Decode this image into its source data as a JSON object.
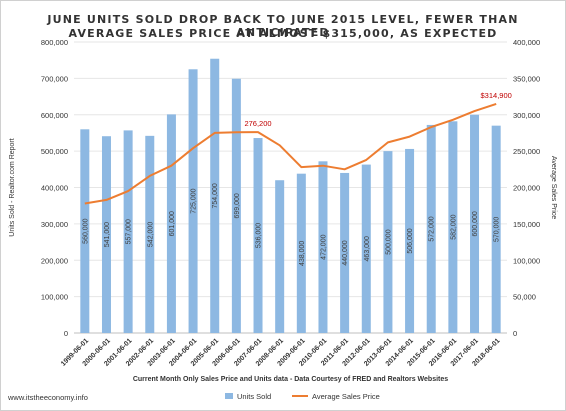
{
  "chart_data": {
    "type": "bar",
    "title": "JUNE UNITS SOLD DROP BACK TO JUNE 2015 LEVEL, FEWER THAN ANTICIPATED",
    "subtitle": "AVERAGE SALES PRICE AT ALMOST $315,000, AS EXPECTED",
    "xlabel": "Current Month Only Sales Price and Units data - Data Courtesy of FRED and Realtors Websites",
    "ylabel": "Units Sold - Realtor.com Report",
    "y2label": "Average Sales Price",
    "ylim": [
      0,
      800000
    ],
    "y2lim": [
      0,
      400000
    ],
    "yticks": [
      "0",
      "100,000",
      "200,000",
      "300,000",
      "400,000",
      "500,000",
      "600,000",
      "700,000",
      "800,000"
    ],
    "y2ticks": [
      "0",
      "50,000",
      "100,000",
      "150,000",
      "200,000",
      "250,000",
      "300,000",
      "350,000",
      "400,000"
    ],
    "categories": [
      "1999-06-01",
      "2000-06-01",
      "2001-06-01",
      "2002-06-01",
      "2003-06-01",
      "2004-06-01",
      "2005-06-01",
      "2006-06-01",
      "2007-06-01",
      "2008-06-01",
      "2009-06-01",
      "2010-06-01",
      "2011-06-01",
      "2012-06-01",
      "2013-06-01",
      "2014-06-01",
      "2015-06-01",
      "2016-06-01",
      "2017-06-01",
      "2018-06-01"
    ],
    "series": [
      {
        "name": "Units Sold",
        "type": "bar",
        "axis": "left",
        "color": "#8db8e2",
        "values": [
          560000,
          541000,
          557000,
          542000,
          601000,
          725000,
          754000,
          699000,
          536000,
          420000,
          438000,
          472000,
          440000,
          463000,
          500000,
          506000,
          572000,
          582000,
          600000,
          570000
        ],
        "labels": [
          "560,000",
          "541,000",
          "557,000",
          "542,000",
          "601,000",
          "725,000",
          "754,000",
          "699,000",
          "536,000",
          "",
          "438,000",
          "472,000",
          "440,000",
          "463,000",
          "500,000",
          "506,000",
          "572,000",
          "582,000",
          "600,000",
          "570,000"
        ]
      },
      {
        "name": "Average Sales Price",
        "type": "line",
        "axis": "right",
        "color": "#ed7d31",
        "values": [
          178000,
          183000,
          195000,
          216000,
          230000,
          254000,
          275000,
          276000,
          276200,
          258000,
          228000,
          230000,
          225000,
          238000,
          262000,
          270000,
          283000,
          293000,
          305000,
          314900
        ]
      }
    ],
    "annotations": [
      {
        "index": 8,
        "series": 1,
        "text": "276,200"
      },
      {
        "index": 19,
        "series": 1,
        "text": "$314,900"
      }
    ],
    "legend": "bottom",
    "grid": true
  },
  "footer": {
    "url": "www.itstheeconomy.info"
  }
}
